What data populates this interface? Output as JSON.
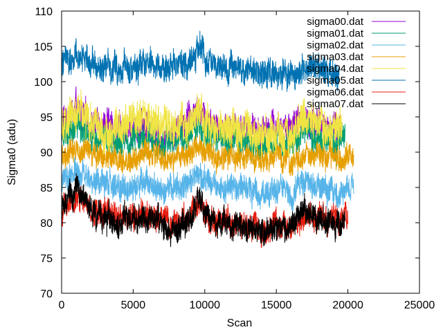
{
  "chart_data": {
    "type": "line",
    "title": "",
    "xlabel": "Scan",
    "ylabel": "Sigma0 (adu)",
    "xlim": [
      0,
      25000
    ],
    "ylim": [
      70,
      110
    ],
    "xticks": [
      0,
      5000,
      10000,
      15000,
      20000,
      25000
    ],
    "yticks": [
      70,
      75,
      80,
      85,
      90,
      95,
      100,
      105,
      110
    ],
    "grid": false,
    "legend": "top-right",
    "series": [
      {
        "name": "sigma00.dat",
        "color": "#9400d3",
        "x": [
          0,
          1000,
          2000,
          3000,
          4000,
          5000,
          6000,
          7000,
          8000,
          9000,
          9600,
          10000,
          11000,
          12000,
          13000,
          14000,
          15000,
          16000,
          17000,
          18000,
          19000,
          19500
        ],
        "y": [
          94,
          96,
          94,
          94,
          93,
          93,
          94,
          92,
          93,
          95,
          96,
          95,
          93,
          93,
          93,
          93,
          94,
          93,
          95,
          94,
          93,
          93
        ],
        "noise": 1.8
      },
      {
        "name": "sigma01.dat",
        "color": "#009e73",
        "x": [
          0,
          1000,
          2000,
          3000,
          4000,
          5000,
          6000,
          7000,
          8000,
          9000,
          9600,
          10000,
          11000,
          12000,
          13000,
          14000,
          15000,
          16000,
          17000,
          18000,
          19000,
          19800
        ],
        "y": [
          92,
          94,
          92,
          92,
          91,
          92,
          92,
          91,
          92,
          93,
          94,
          93,
          92,
          92,
          91,
          91,
          92,
          91,
          93,
          92,
          91,
          92
        ],
        "noise": 1.8
      },
      {
        "name": "sigma02.dat",
        "color": "#56b4e9",
        "x": [
          0,
          1000,
          2000,
          3000,
          4000,
          5000,
          6000,
          7000,
          8000,
          9000,
          9600,
          10000,
          11000,
          12000,
          13000,
          14000,
          15000,
          16000,
          17000,
          18000,
          19000,
          20000,
          20400
        ],
        "y": [
          86,
          87,
          86,
          85.5,
          85,
          85,
          86,
          85,
          85,
          86,
          87.5,
          86,
          85,
          85,
          85,
          84,
          85,
          84,
          86,
          85,
          84,
          85,
          85
        ],
        "noise": 1.6
      },
      {
        "name": "sigma03.dat",
        "color": "#e69f00",
        "x": [
          0,
          1000,
          2000,
          3000,
          4000,
          5000,
          6000,
          7000,
          8000,
          9000,
          9600,
          10000,
          11000,
          12000,
          13000,
          14000,
          15000,
          16000,
          17000,
          18000,
          19000,
          20000,
          20400
        ],
        "y": [
          89.5,
          91,
          90,
          89.5,
          89,
          89,
          90,
          89,
          89,
          90,
          91,
          90,
          89,
          89,
          89,
          88.5,
          89,
          88.5,
          90,
          89.5,
          89,
          89.5,
          89
        ],
        "noise": 1.4
      },
      {
        "name": "sigma04.dat",
        "color": "#f0e442",
        "x": [
          0,
          1000,
          2000,
          3000,
          4000,
          5000,
          6000,
          7000,
          8000,
          9000,
          9600,
          10000,
          11000,
          12000,
          13000,
          14000,
          15000,
          16000,
          17000,
          18000,
          19000,
          19600
        ],
        "y": [
          93,
          96,
          94,
          93,
          93,
          94,
          95,
          94,
          93,
          94,
          95,
          94,
          93,
          93,
          93,
          93,
          93,
          92,
          95,
          94,
          93,
          93
        ],
        "noise": 2.2
      },
      {
        "name": "sigma05.dat",
        "color": "#0072b2",
        "x": [
          0,
          1000,
          2000,
          3000,
          4000,
          5000,
          6000,
          7000,
          8000,
          9000,
          9600,
          10000,
          11000,
          12000,
          13000,
          14000,
          15000,
          16000,
          17000,
          18000,
          19000,
          19400
        ],
        "y": [
          102,
          104,
          102.5,
          102,
          102,
          102,
          102.5,
          102,
          102,
          103,
          104.5,
          103,
          102,
          102,
          102,
          101.5,
          101.5,
          101,
          102,
          101.5,
          101,
          101
        ],
        "noise": 1.7
      },
      {
        "name": "sigma06.dat",
        "color": "#e51e10",
        "x": [
          0,
          1000,
          2000,
          3000,
          4000,
          5000,
          6000,
          7000,
          8000,
          9000,
          9600,
          10000,
          11000,
          12000,
          13000,
          14000,
          15000,
          16000,
          17000,
          18000,
          19000,
          20000
        ],
        "y": [
          81,
          84,
          82,
          81,
          80.5,
          81,
          81,
          80.5,
          80,
          81,
          83,
          81,
          80,
          80,
          79.5,
          79,
          79.5,
          79,
          81,
          80.5,
          80,
          80.5
        ],
        "noise": 1.6
      },
      {
        "name": "sigma07.dat",
        "color": "#000000",
        "x": [
          0,
          1000,
          2000,
          3000,
          4000,
          5000,
          6000,
          7000,
          8000,
          9000,
          9600,
          10000,
          11000,
          12000,
          13000,
          14000,
          15000,
          16000,
          17000,
          18000,
          19000,
          19800
        ],
        "y": [
          82.5,
          85,
          82,
          80.5,
          80,
          80.5,
          80.5,
          80,
          79,
          80.5,
          84,
          81,
          79.5,
          79.5,
          79,
          78.5,
          79,
          79,
          82,
          80.5,
          79.5,
          80
        ],
        "noise": 1.6
      }
    ]
  }
}
